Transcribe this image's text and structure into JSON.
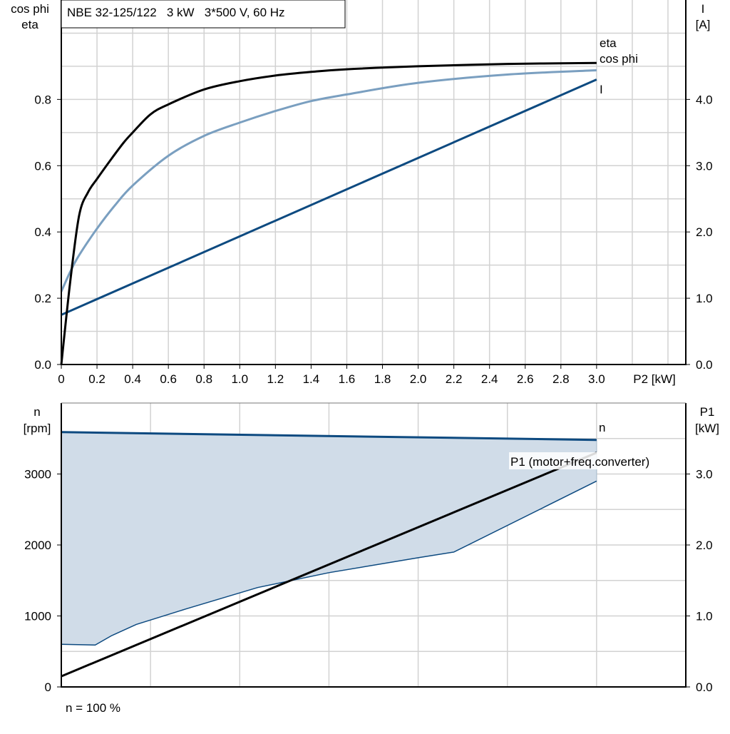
{
  "colors": {
    "eta": "#000000",
    "cos_phi": "#7a9fc0",
    "current": "#0d4a80",
    "n": "#0d4a80",
    "n_band_fill": "#d0dce8",
    "p1": "#000000",
    "grid": "#d2d2d2"
  },
  "chart_data": [
    {
      "type": "line",
      "title": "NBE 32-125/122   3 kW   3*500 V, 60 Hz",
      "xlabel": "P2 [kW]",
      "ylabel_left": [
        "cos phi",
        "eta"
      ],
      "ylabel_right": [
        "I",
        "[A]"
      ],
      "xlim": [
        0,
        3.5
      ],
      "ylim_left": [
        0,
        1.1
      ],
      "ylim_right": [
        0,
        5.5
      ],
      "x_ticks": [
        "0",
        "0.2",
        "0.4",
        "0.6",
        "0.8",
        "1.0",
        "1.2",
        "1.4",
        "1.6",
        "1.8",
        "2.0",
        "2.2",
        "2.4",
        "2.6",
        "2.8",
        "3.0"
      ],
      "y_ticks_left": [
        "0.0",
        "0.2",
        "0.4",
        "0.6",
        "0.8"
      ],
      "y_ticks_right": [
        "0.0",
        "1.0",
        "2.0",
        "3.0",
        "4.0"
      ],
      "grid": true,
      "series": [
        {
          "name": "eta",
          "axis": "left",
          "x": [
            0,
            0.05,
            0.1,
            0.15,
            0.2,
            0.28,
            0.35,
            0.4,
            0.5,
            0.6,
            0.8,
            1.0,
            1.2,
            1.4,
            1.6,
            2.0,
            2.5,
            3.0
          ],
          "y": [
            0,
            0.25,
            0.45,
            0.52,
            0.56,
            0.62,
            0.67,
            0.7,
            0.755,
            0.785,
            0.83,
            0.855,
            0.872,
            0.883,
            0.891,
            0.9,
            0.907,
            0.91
          ]
        },
        {
          "name": "cos phi",
          "axis": "left",
          "x": [
            0,
            0.05,
            0.1,
            0.2,
            0.3,
            0.4,
            0.6,
            0.8,
            1.0,
            1.2,
            1.4,
            1.6,
            2.0,
            2.5,
            3.0
          ],
          "y": [
            0.22,
            0.28,
            0.33,
            0.41,
            0.48,
            0.54,
            0.63,
            0.69,
            0.73,
            0.765,
            0.795,
            0.815,
            0.85,
            0.875,
            0.888
          ]
        },
        {
          "name": "I",
          "axis": "right",
          "x": [
            0,
            3.0
          ],
          "y": [
            0.75,
            4.3
          ]
        }
      ]
    },
    {
      "type": "area",
      "xlim": [
        0,
        3.5
      ],
      "ylabel_left": [
        "n",
        "[rpm]"
      ],
      "ylabel_right": [
        "P1",
        "[kW]"
      ],
      "ylim_left": [
        0,
        4000
      ],
      "ylim_right": [
        0,
        4.0
      ],
      "y_ticks_left": [
        "0",
        "1000",
        "2000",
        "3000"
      ],
      "y_ticks_right": [
        "0.0",
        "1.0",
        "2.0",
        "3.0"
      ],
      "grid": true,
      "footer": "n = 100 %",
      "series": [
        {
          "name": "n",
          "axis": "left",
          "x": [
            0,
            3.0
          ],
          "y": [
            3590,
            3480
          ]
        },
        {
          "name": "n_min",
          "axis": "left",
          "x": [
            0,
            0.19,
            0.28,
            0.42,
            0.7,
            1.1,
            1.5,
            2.0,
            2.2,
            3.0
          ],
          "y": [
            600,
            590,
            720,
            880,
            1100,
            1400,
            1610,
            1820,
            1900,
            2900
          ]
        },
        {
          "name": "P1 (motor+freq.converter)",
          "axis": "right",
          "x": [
            0,
            3.0
          ],
          "y": [
            0.15,
            3.3
          ]
        }
      ]
    }
  ]
}
